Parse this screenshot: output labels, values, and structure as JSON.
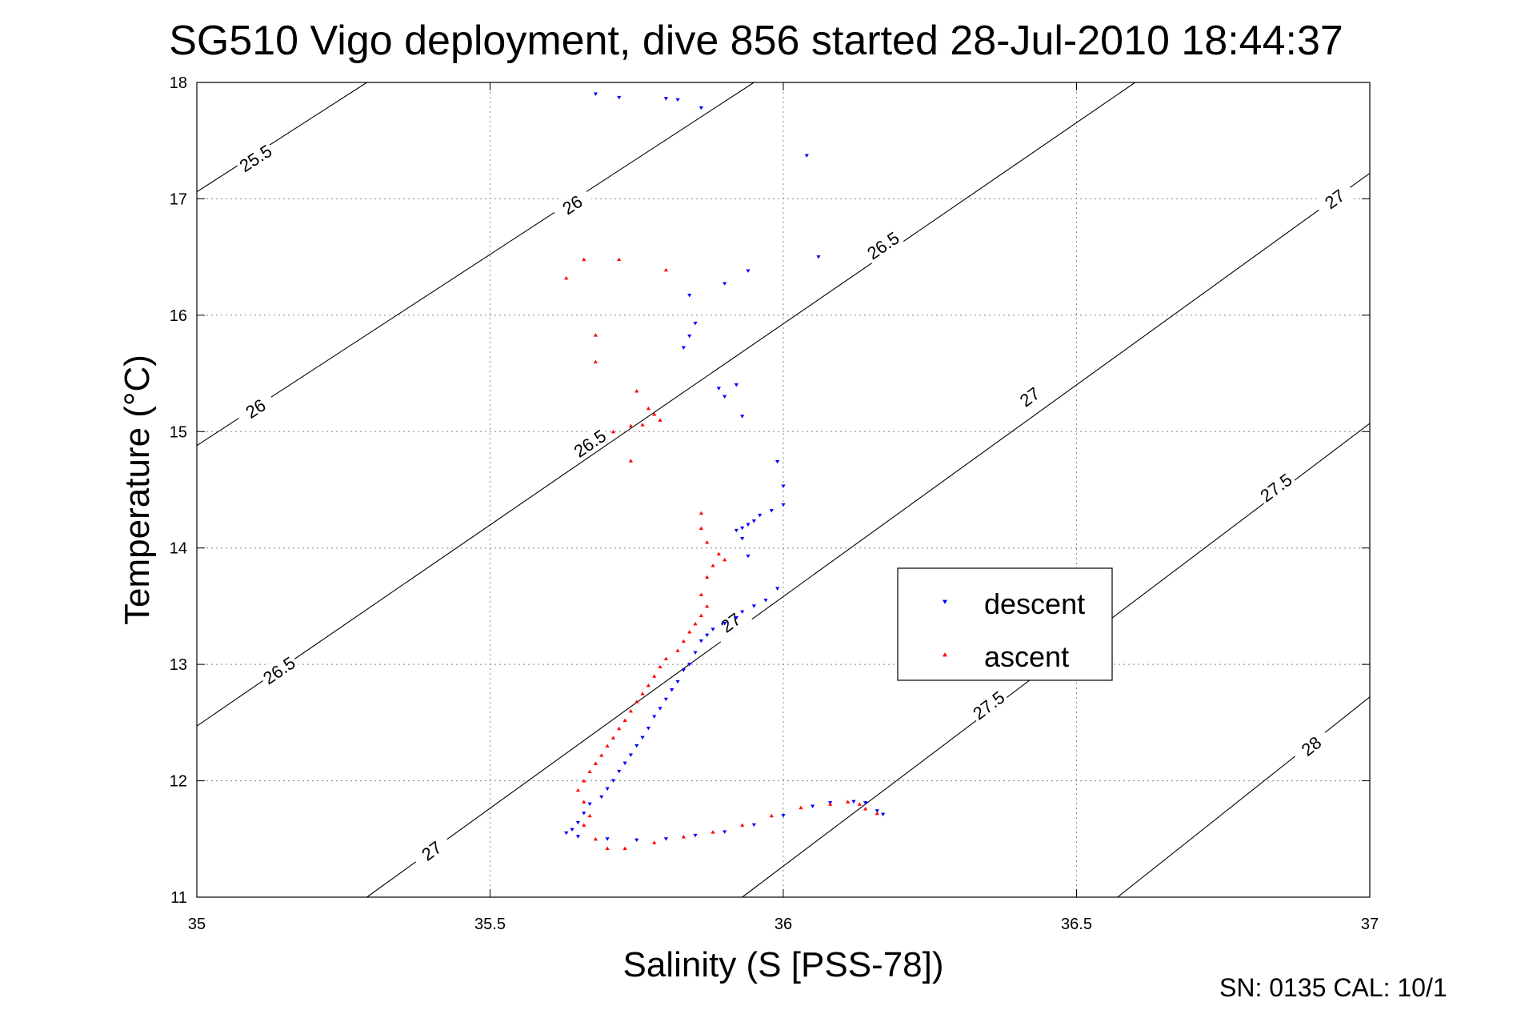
{
  "chart_data": {
    "type": "scatter",
    "title": "SG510 Vigo deployment, dive 856 started 28-Jul-2010 18:44:37",
    "xlabel": "Salinity (S [PSS-78])",
    "ylabel": "Temperature (°C)",
    "xlim": [
      35,
      37
    ],
    "ylim": [
      11,
      18
    ],
    "xticks": [
      35,
      35.5,
      36,
      36.5,
      37
    ],
    "xtick_labels": [
      "35",
      "35.5",
      "36",
      "36.5",
      "37"
    ],
    "yticks": [
      11,
      12,
      13,
      14,
      15,
      16,
      17,
      18
    ],
    "ytick_labels": [
      "11",
      "12",
      "13",
      "14",
      "15",
      "16",
      "17",
      "18"
    ],
    "grid": true,
    "legend_position": "right",
    "footer": "SN: 0135  CAL: 10/1",
    "contours": [
      {
        "label": "25.5",
        "points": [
          [
            35,
            17.06
          ],
          [
            35.29,
            18
          ]
        ],
        "labels_at": [
          [
            35.1,
            17.35
          ]
        ]
      },
      {
        "label": "26",
        "points": [
          [
            35,
            14.88
          ],
          [
            35.95,
            18
          ]
        ],
        "labels_at": [
          [
            35.1,
            15.2
          ],
          [
            35.64,
            16.95
          ]
        ]
      },
      {
        "label": "26.5",
        "points": [
          [
            35,
            12.47
          ],
          [
            36.6,
            18
          ]
        ],
        "labels_at": [
          [
            35.14,
            12.95
          ],
          [
            35.67,
            14.9
          ],
          [
            36.17,
            16.6
          ]
        ]
      },
      {
        "label": "27",
        "points": [
          [
            35.29,
            11
          ],
          [
            37,
            17.22
          ]
        ],
        "labels_at": [
          [
            35.4,
            11.4
          ],
          [
            35.91,
            13.36
          ],
          [
            36.42,
            15.3
          ],
          [
            36.94,
            17.0
          ]
        ]
      },
      {
        "label": "27.5",
        "points": [
          [
            35.93,
            11
          ],
          [
            37,
            15.07
          ]
        ],
        "labels_at": [
          [
            36.35,
            12.65
          ],
          [
            36.84,
            14.52
          ]
        ]
      },
      {
        "label": "28",
        "points": [
          [
            36.57,
            11
          ],
          [
            37,
            12.72
          ]
        ],
        "labels_at": [
          [
            36.9,
            12.3
          ]
        ]
      }
    ],
    "series": [
      {
        "name": "descent",
        "color": "#0000ff",
        "marker": "triangle-down",
        "points": [
          [
            35.68,
            17.9
          ],
          [
            35.72,
            17.87
          ],
          [
            35.8,
            17.86
          ],
          [
            35.82,
            17.85
          ],
          [
            35.86,
            17.78
          ],
          [
            36.04,
            17.37
          ],
          [
            36.06,
            16.5
          ],
          [
            35.94,
            16.38
          ],
          [
            35.9,
            16.27
          ],
          [
            35.84,
            16.17
          ],
          [
            35.85,
            15.93
          ],
          [
            35.84,
            15.82
          ],
          [
            35.83,
            15.72
          ],
          [
            35.89,
            15.37
          ],
          [
            35.92,
            15.4
          ],
          [
            35.9,
            15.3
          ],
          [
            35.93,
            15.13
          ],
          [
            35.99,
            14.74
          ],
          [
            36.0,
            14.53
          ],
          [
            36.0,
            14.37
          ],
          [
            35.98,
            14.32
          ],
          [
            35.96,
            14.28
          ],
          [
            35.95,
            14.23
          ],
          [
            35.94,
            14.2
          ],
          [
            35.93,
            14.17
          ],
          [
            35.92,
            14.15
          ],
          [
            35.93,
            14.08
          ],
          [
            35.94,
            13.93
          ],
          [
            35.99,
            13.65
          ],
          [
            35.97,
            13.55
          ],
          [
            35.95,
            13.5
          ],
          [
            35.93,
            13.45
          ],
          [
            35.92,
            13.4
          ],
          [
            35.9,
            13.35
          ],
          [
            35.88,
            13.3
          ],
          [
            35.87,
            13.25
          ],
          [
            35.86,
            13.2
          ],
          [
            35.85,
            13.1
          ],
          [
            35.84,
            13.0
          ],
          [
            35.83,
            12.95
          ],
          [
            35.82,
            12.85
          ],
          [
            35.81,
            12.78
          ],
          [
            35.8,
            12.7
          ],
          [
            35.79,
            12.62
          ],
          [
            35.78,
            12.55
          ],
          [
            35.77,
            12.45
          ],
          [
            35.76,
            12.37
          ],
          [
            35.75,
            12.3
          ],
          [
            35.74,
            12.22
          ],
          [
            35.73,
            12.15
          ],
          [
            35.72,
            12.08
          ],
          [
            35.71,
            12.0
          ],
          [
            35.7,
            11.93
          ],
          [
            35.69,
            11.86
          ],
          [
            35.67,
            11.8
          ],
          [
            35.66,
            11.72
          ],
          [
            35.65,
            11.64
          ],
          [
            35.64,
            11.58
          ],
          [
            35.63,
            11.55
          ],
          [
            35.65,
            11.52
          ],
          [
            35.7,
            11.5
          ],
          [
            35.75,
            11.49
          ],
          [
            35.8,
            11.5
          ],
          [
            35.85,
            11.53
          ],
          [
            35.9,
            11.56
          ],
          [
            35.95,
            11.62
          ],
          [
            36.0,
            11.7
          ],
          [
            36.05,
            11.78
          ],
          [
            36.08,
            11.81
          ],
          [
            36.12,
            11.82
          ],
          [
            36.14,
            11.81
          ],
          [
            36.16,
            11.74
          ],
          [
            36.17,
            11.71
          ]
        ]
      },
      {
        "name": "ascent",
        "color": "#ff0000",
        "marker": "triangle-up",
        "points": [
          [
            35.63,
            16.32
          ],
          [
            35.66,
            16.48
          ],
          [
            35.72,
            16.48
          ],
          [
            35.8,
            16.39
          ],
          [
            35.68,
            15.83
          ],
          [
            35.68,
            15.6
          ],
          [
            35.75,
            15.35
          ],
          [
            35.77,
            15.2
          ],
          [
            35.78,
            15.15
          ],
          [
            35.79,
            15.1
          ],
          [
            35.76,
            15.06
          ],
          [
            35.74,
            15.05
          ],
          [
            35.71,
            15.0
          ],
          [
            35.74,
            14.75
          ],
          [
            35.86,
            14.3
          ],
          [
            35.86,
            14.17
          ],
          [
            35.87,
            14.05
          ],
          [
            35.89,
            13.95
          ],
          [
            35.9,
            13.9
          ],
          [
            35.88,
            13.85
          ],
          [
            35.87,
            13.75
          ],
          [
            35.86,
            13.6
          ],
          [
            35.87,
            13.5
          ],
          [
            35.86,
            13.42
          ],
          [
            35.85,
            13.35
          ],
          [
            35.84,
            13.28
          ],
          [
            35.83,
            13.2
          ],
          [
            35.82,
            13.12
          ],
          [
            35.8,
            13.05
          ],
          [
            35.79,
            12.98
          ],
          [
            35.78,
            12.9
          ],
          [
            35.77,
            12.82
          ],
          [
            35.76,
            12.75
          ],
          [
            35.75,
            12.68
          ],
          [
            35.74,
            12.6
          ],
          [
            35.73,
            12.52
          ],
          [
            35.72,
            12.45
          ],
          [
            35.71,
            12.37
          ],
          [
            35.7,
            12.3
          ],
          [
            35.69,
            12.22
          ],
          [
            35.68,
            12.15
          ],
          [
            35.67,
            12.08
          ],
          [
            35.66,
            12.0
          ],
          [
            35.65,
            11.92
          ],
          [
            35.66,
            11.82
          ],
          [
            35.67,
            11.7
          ],
          [
            35.66,
            11.62
          ],
          [
            35.68,
            11.5
          ],
          [
            35.7,
            11.42
          ],
          [
            35.73,
            11.42
          ],
          [
            35.78,
            11.47
          ],
          [
            35.83,
            11.52
          ],
          [
            35.88,
            11.56
          ],
          [
            35.93,
            11.62
          ],
          [
            35.98,
            11.7
          ],
          [
            36.03,
            11.77
          ],
          [
            36.08,
            11.8
          ],
          [
            36.11,
            11.82
          ],
          [
            36.13,
            11.8
          ],
          [
            36.14,
            11.76
          ],
          [
            36.16,
            11.72
          ]
        ]
      }
    ]
  }
}
